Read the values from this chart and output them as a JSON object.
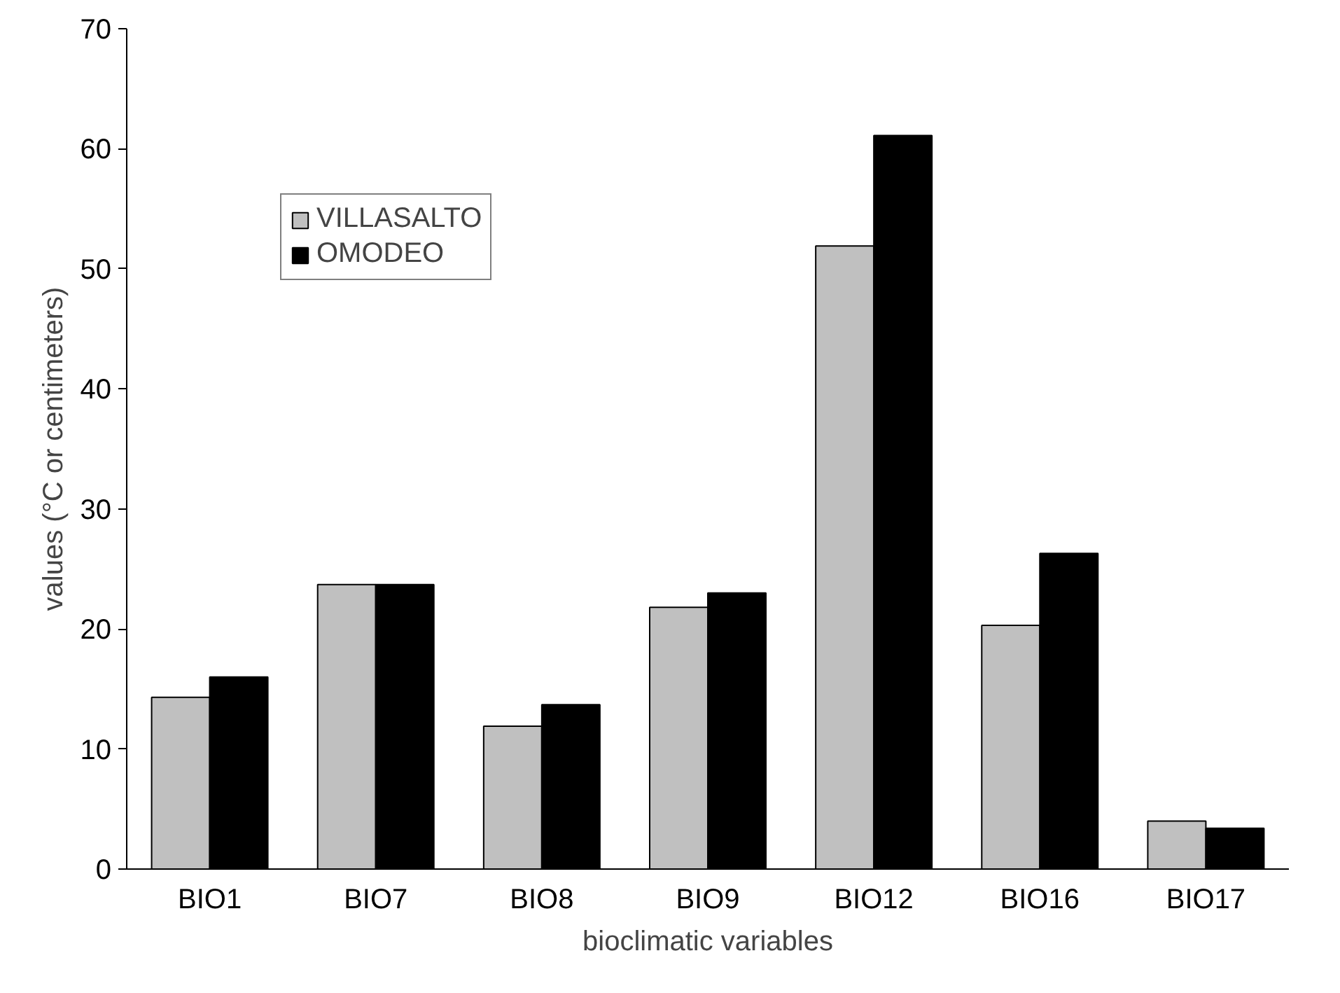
{
  "chart_data": {
    "type": "bar",
    "xlabel": "bioclimatic variables",
    "ylabel": "values (°C or centimeters)",
    "categories": [
      "BIO1",
      "BIO7",
      "BIO8",
      "BIO9",
      "BIO12",
      "BIO16",
      "BIO17"
    ],
    "series": [
      {
        "name": "VILLASALTO",
        "color": "#c0c0c0",
        "values": [
          14.3,
          23.7,
          11.9,
          21.8,
          51.9,
          20.3,
          4.0
        ]
      },
      {
        "name": "OMODEO",
        "color": "#000000",
        "values": [
          16.0,
          23.7,
          13.7,
          23.0,
          61.1,
          26.3,
          3.4
        ]
      }
    ],
    "ylim": [
      0,
      70
    ],
    "yticks": [
      0,
      10,
      20,
      30,
      40,
      50,
      60,
      70
    ],
    "grid": false,
    "legend": "top left"
  }
}
